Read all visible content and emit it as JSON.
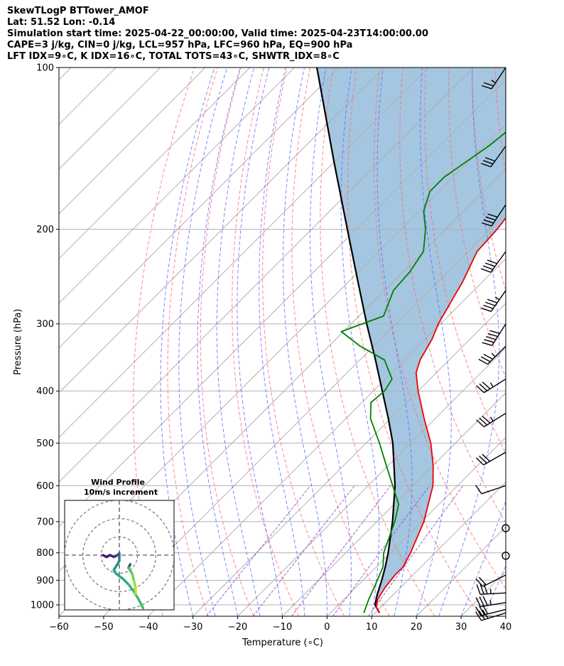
{
  "header": {
    "line1": "SkewTLogP BTTower_AMOF",
    "line2": "Lat: 51.52   Lon: -0.14",
    "line3": "Simulation start time: 2025-04-22_00:00:00, Valid time: 2025-04-23T14:00:00.00",
    "line4": "CAPE=3 j/kg, CIN=0 j/kg, LCL=957 hPa, LFC=960 hPa, EQ=900 hPa",
    "line5": "LFT IDX=9∘C, K IDX=16∘C, TOTAL TOTS=43∘C, SHWTR_IDX=8∘C"
  },
  "chart_data": {
    "type": "line",
    "xlabel": "Temperature (∘C)",
    "ylabel": "Pressure (hPa)",
    "xlim": [
      -60,
      40
    ],
    "ylim": [
      1050,
      100
    ],
    "y_scale": "log",
    "grid": true,
    "x_ticks": [
      -60,
      -50,
      -40,
      -30,
      -20,
      -10,
      0,
      10,
      20,
      30,
      40
    ],
    "y_ticks": [
      100,
      200,
      300,
      400,
      500,
      600,
      700,
      800,
      900,
      1000
    ],
    "colors": {
      "temperature": "#ee0000",
      "dewpoint": "#008000",
      "parcel": "#000000",
      "cape_fill": "#a4c6e0",
      "dry_adiabats": "#ff6a6a",
      "moist_adiabats": "#5b6cff",
      "mixing_ratio": "#9a4bd0",
      "isotherms": "#b0b0b0"
    },
    "temperature": [
      {
        "p": 1035,
        "t": 11.0
      },
      {
        "p": 1010,
        "t": 9.0
      },
      {
        "p": 975,
        "t": 7.5
      },
      {
        "p": 925,
        "t": 6.5
      },
      {
        "p": 880,
        "t": 6.0
      },
      {
        "p": 850,
        "t": 6.0
      },
      {
        "p": 800,
        "t": 4.5
      },
      {
        "p": 700,
        "t": 0.5
      },
      {
        "p": 600,
        "t": -5.5
      },
      {
        "p": 550,
        "t": -10.0
      },
      {
        "p": 500,
        "t": -15.5
      },
      {
        "p": 450,
        "t": -22.5
      },
      {
        "p": 400,
        "t": -30.0
      },
      {
        "p": 370,
        "t": -34.5
      },
      {
        "p": 350,
        "t": -36.5
      },
      {
        "p": 320,
        "t": -38.5
      },
      {
        "p": 300,
        "t": -40.5
      },
      {
        "p": 250,
        "t": -44.5
      },
      {
        "p": 220,
        "t": -48.0
      },
      {
        "p": 200,
        "t": -48.5
      },
      {
        "p": 170,
        "t": -50.5
      },
      {
        "p": 150,
        "t": -52.0
      },
      {
        "p": 140,
        "t": -53.0
      },
      {
        "p": 120,
        "t": -57.0
      },
      {
        "p": 100,
        "t": -62.0
      }
    ],
    "dewpoint": [
      {
        "p": 1035,
        "t": 7.5
      },
      {
        "p": 1020,
        "t": 7.0
      },
      {
        "p": 975,
        "t": 5.5
      },
      {
        "p": 925,
        "t": 4.0
      },
      {
        "p": 850,
        "t": 1.5
      },
      {
        "p": 800,
        "t": -1.5
      },
      {
        "p": 700,
        "t": -6.0
      },
      {
        "p": 650,
        "t": -9.0
      },
      {
        "p": 600,
        "t": -14.5
      },
      {
        "p": 550,
        "t": -20.5
      },
      {
        "p": 500,
        "t": -27.0
      },
      {
        "p": 450,
        "t": -34.5
      },
      {
        "p": 420,
        "t": -38.0
      },
      {
        "p": 400,
        "t": -37.5
      },
      {
        "p": 380,
        "t": -38.5
      },
      {
        "p": 350,
        "t": -44.5
      },
      {
        "p": 330,
        "t": -53.0
      },
      {
        "p": 310,
        "t": -60.5
      },
      {
        "p": 290,
        "t": -54.5
      },
      {
        "p": 260,
        "t": -58.0
      },
      {
        "p": 240,
        "t": -58.5
      },
      {
        "p": 220,
        "t": -60.0
      },
      {
        "p": 200,
        "t": -64.5
      },
      {
        "p": 185,
        "t": -69.0
      },
      {
        "p": 170,
        "t": -72.0
      },
      {
        "p": 160,
        "t": -72.0
      },
      {
        "p": 140,
        "t": -69.0
      },
      {
        "p": 120,
        "t": -67.0
      },
      {
        "p": 100,
        "t": -64.0
      }
    ],
    "parcel": [
      {
        "p": 1035,
        "t": 11.0
      },
      {
        "p": 1000,
        "t": 8.2
      },
      {
        "p": 960,
        "t": 6.5
      },
      {
        "p": 900,
        "t": 4.2
      },
      {
        "p": 850,
        "t": 2.0
      },
      {
        "p": 800,
        "t": -0.5
      },
      {
        "p": 700,
        "t": -6.5
      },
      {
        "p": 600,
        "t": -14.0
      },
      {
        "p": 500,
        "t": -24.0
      },
      {
        "p": 450,
        "t": -30.5
      },
      {
        "p": 400,
        "t": -38.0
      },
      {
        "p": 350,
        "t": -46.5
      },
      {
        "p": 300,
        "t": -56.5
      },
      {
        "p": 250,
        "t": -68.0
      },
      {
        "p": 200,
        "t": -82.0
      },
      {
        "p": 150,
        "t": -100.0
      },
      {
        "p": 100,
        "t": -125.0
      }
    ],
    "wind_barbs": [
      {
        "p": 100,
        "u": 8,
        "v": 12
      },
      {
        "p": 140,
        "u": 10,
        "v": 14
      },
      {
        "p": 180,
        "u": 12,
        "v": 18
      },
      {
        "p": 220,
        "u": 13,
        "v": 18
      },
      {
        "p": 260,
        "u": 14,
        "v": 20
      },
      {
        "p": 300,
        "u": 14,
        "v": 22
      },
      {
        "p": 330,
        "u": 14,
        "v": 14
      },
      {
        "p": 380,
        "u": 16,
        "v": 10
      },
      {
        "p": 440,
        "u": 16,
        "v": 10
      },
      {
        "p": 520,
        "u": 14,
        "v": 8
      },
      {
        "p": 600,
        "u": 6,
        "v": 2
      },
      {
        "p": 720,
        "u": 0,
        "v": 0
      },
      {
        "p": 810,
        "u": 0,
        "v": 0
      },
      {
        "p": 880,
        "u": 10,
        "v": 5
      },
      {
        "p": 950,
        "u": 18,
        "v": 1
      },
      {
        "p": 990,
        "u": 18,
        "v": 3
      },
      {
        "p": 1020,
        "u": 16,
        "v": 4
      },
      {
        "p": 1035,
        "u": 16,
        "v": 5
      }
    ],
    "inset": {
      "title_line1": "Wind Profile",
      "title_line2": "10m/s increment",
      "rings": [
        10,
        20,
        30
      ],
      "range": 30,
      "hodograph": [
        {
          "u": 13,
          "v": -29
        },
        {
          "u": 11,
          "v": -25
        },
        {
          "u": 8,
          "v": -20
        },
        {
          "u": 5,
          "v": -16
        },
        {
          "u": 2,
          "v": -13
        },
        {
          "u": -2,
          "v": -10
        },
        {
          "u": -3,
          "v": -8
        },
        {
          "u": -1,
          "v": -5
        },
        {
          "u": 0,
          "v": -3
        },
        {
          "u": 0,
          "v": -1
        },
        {
          "u": 0,
          "v": 1
        },
        {
          "u": -1,
          "v": 0
        },
        {
          "u": -3,
          "v": -1
        },
        {
          "u": -5,
          "v": 0
        },
        {
          "u": -7,
          "v": -1
        },
        {
          "u": -9,
          "v": 0
        }
      ],
      "branch": [
        {
          "u": 6,
          "v": -5
        },
        {
          "u": 5,
          "v": -7
        },
        {
          "u": 7,
          "v": -10
        },
        {
          "u": 8,
          "v": -14
        },
        {
          "u": 9,
          "v": -18
        },
        {
          "u": 9,
          "v": -21
        }
      ]
    }
  }
}
